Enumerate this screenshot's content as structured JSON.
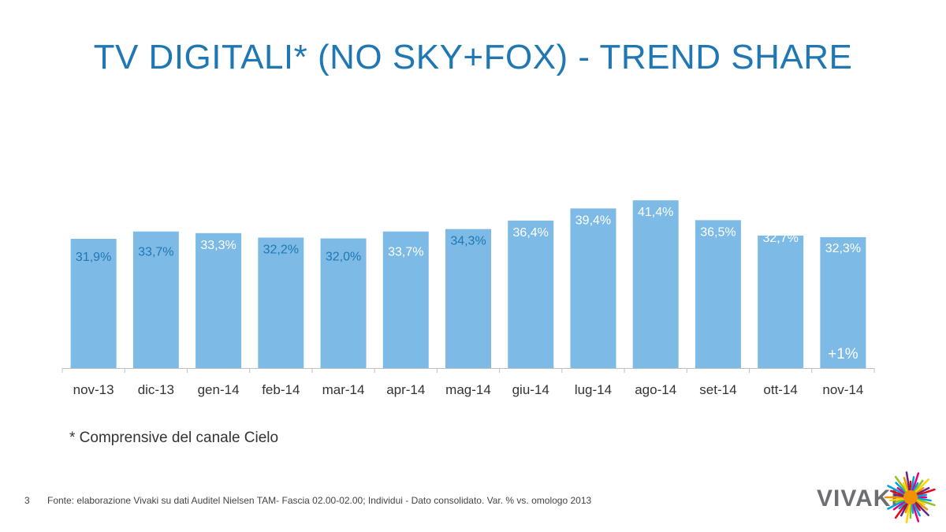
{
  "title": "TV DIGITALI* (NO SKY+FOX) - TREND SHARE",
  "chart_data": {
    "type": "bar",
    "categories": [
      "nov-13",
      "dic-13",
      "gen-14",
      "feb-14",
      "mar-14",
      "apr-14",
      "mag-14",
      "giu-14",
      "lug-14",
      "ago-14",
      "set-14",
      "ott-14",
      "nov-14"
    ],
    "values": [
      31.9,
      33.7,
      33.3,
      32.2,
      32.0,
      33.7,
      34.3,
      36.4,
      39.4,
      41.4,
      36.5,
      32.7,
      32.3
    ],
    "value_labels": [
      "31,9%",
      "33,7%",
      "33,3%",
      "32,2%",
      "32,0%",
      "33,7%",
      "34,3%",
      "36,4%",
      "39,4%",
      "41,4%",
      "36,5%",
      "32,7%",
      "32,3%"
    ],
    "annotation": "+1%",
    "bar_color": "#7dbbe6",
    "grid": false
  },
  "footnote": "* Comprensive del canale Cielo",
  "page_number": "3",
  "source": "Fonte: elaborazione Vivaki su dati Auditel Nielsen TAM- Fascia 02.00-02.00; Individui - Dato consolidato. Var. % vs. omologo 2013",
  "logo": "VIVAKI",
  "colors": {
    "title": "#1f77b4",
    "axis": "#bfbfbf",
    "label_light": "#ffffff",
    "label_dark": "#1f77b4"
  }
}
